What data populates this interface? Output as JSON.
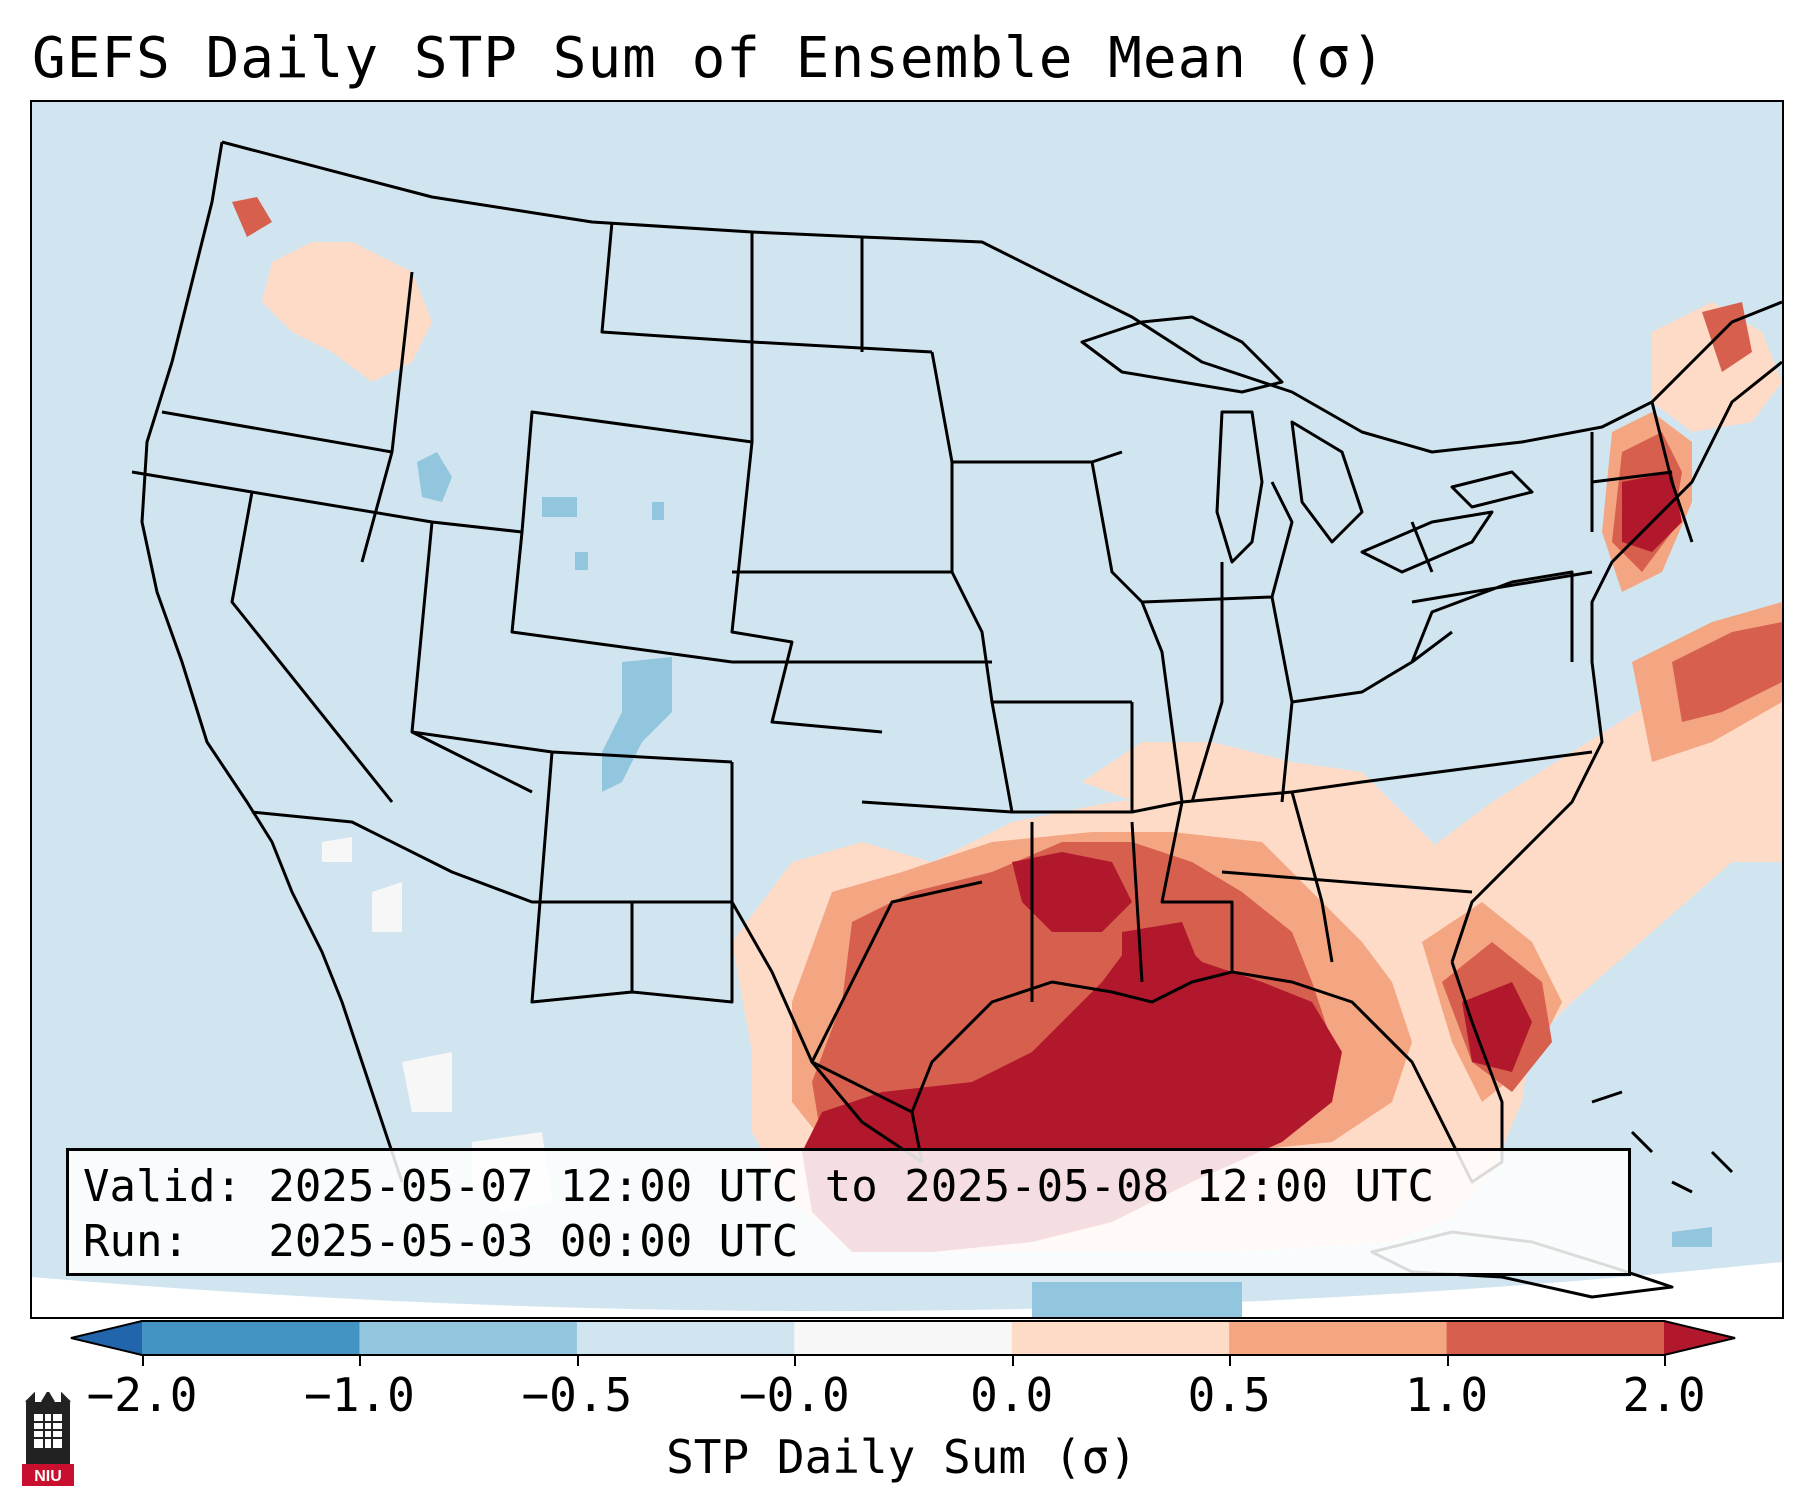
{
  "title": "GEFS Daily STP Sum of Ensemble Mean (σ)",
  "info": {
    "valid_line": "Valid: 2025-05-07 12:00 UTC to 2025-05-08 12:00 UTC",
    "run_line": "Run:   2025-05-03 00:00 UTC"
  },
  "colorbar": {
    "label": "STP Daily Sum (σ)",
    "ticks": [
      "−2.0",
      "−1.0",
      "−0.5",
      "−0.0",
      "0.0",
      "0.5",
      "1.0",
      "2.0"
    ],
    "bins": [
      {
        "range": "< -2.0",
        "color": "#2166ac"
      },
      {
        "range": "-2.0 to -1.0",
        "color": "#4393c3"
      },
      {
        "range": "-1.0 to -0.5",
        "color": "#92c5de"
      },
      {
        "range": "-0.5 to -0.0",
        "color": "#d1e5f0"
      },
      {
        "range": "-0.0 to 0.0",
        "color": "#f7f7f7"
      },
      {
        "range": "0.0 to 0.5",
        "color": "#fddbc7"
      },
      {
        "range": "0.5 to 1.0",
        "color": "#f4a582"
      },
      {
        "range": "1.0 to 2.0",
        "color": "#d6604d"
      },
      {
        "range": "> 2.0",
        "color": "#b2182b"
      }
    ]
  },
  "map": {
    "projection": "Lambert Conformal, CONUS",
    "field": "GEFS ensemble mean daily STP sum (standardized anomaly)",
    "base_color": "#d1e5f0",
    "regions": [
      {
        "name": "Gulf Coast / Louisiana / East Texas",
        "level": "> 2.0"
      },
      {
        "name": "Mississippi / Arkansas / Oklahoma",
        "level": "1.0 to 2.0"
      },
      {
        "name": "Alabama / Georgia / Tennessee",
        "level": "0.5 to 2.0"
      },
      {
        "name": "Southern New England",
        "level": "1.0 to 2.0"
      },
      {
        "name": "Off Georgia coast (Atlantic)",
        "level": "> 2.0"
      },
      {
        "name": "Western Atlantic band",
        "level": "0.0 to 1.0"
      },
      {
        "name": "Pacific Northwest",
        "level": "0.0 to 1.0"
      },
      {
        "name": "Wyoming / Colorado Rockies",
        "level": "-1.0 to -0.5"
      }
    ]
  },
  "logo": {
    "text": "NIU"
  }
}
